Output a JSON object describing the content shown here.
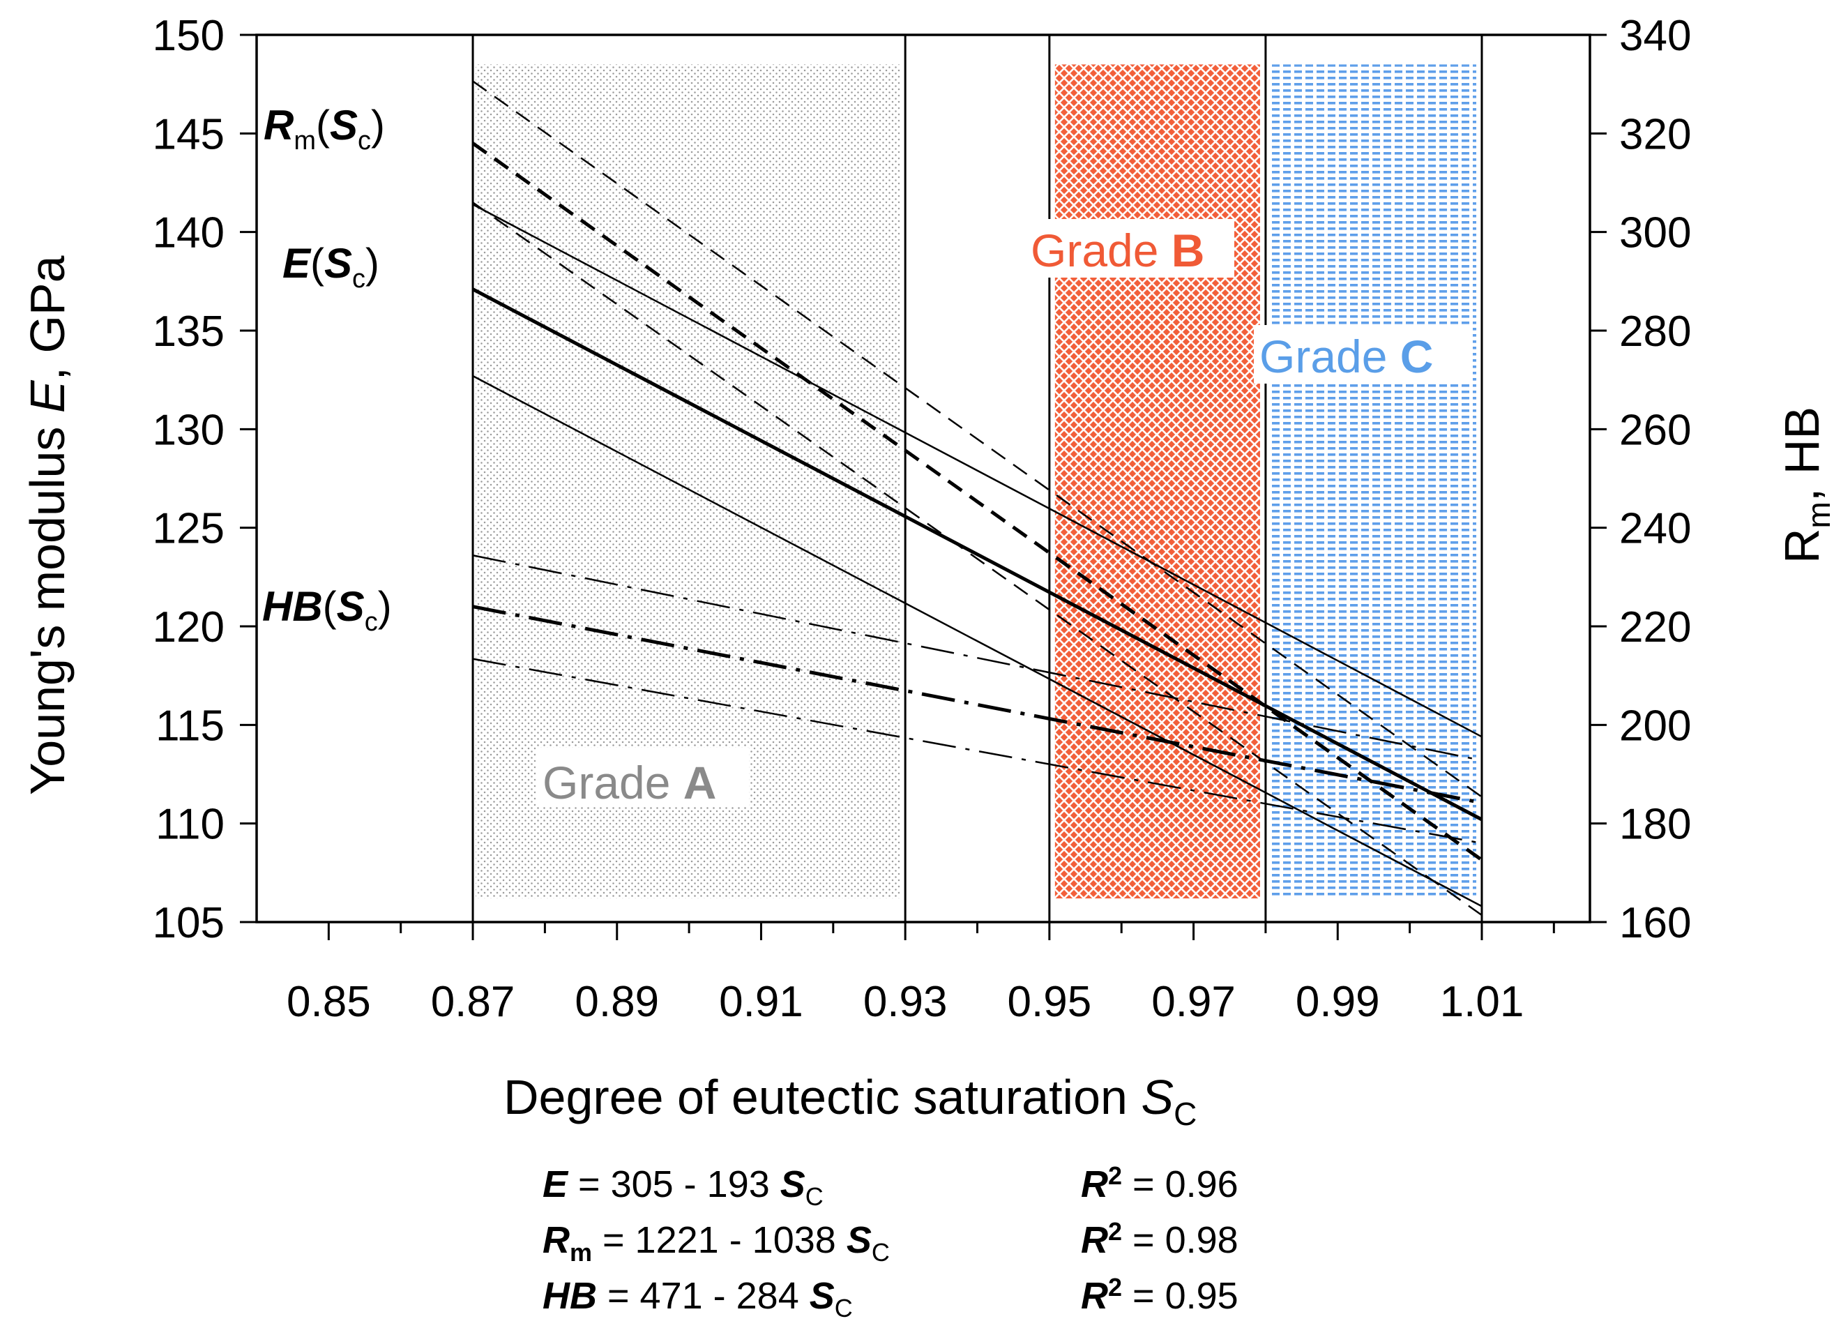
{
  "chart_data": {
    "type": "line",
    "title": "",
    "xlabel": "Degree of eutectic saturation",
    "xlabel_symbol": "S",
    "xlabel_sub": "C",
    "ylabel": "Young's modulus",
    "ylabel_symbol": "E",
    "ylabel_unit": ", GPa",
    "y2label": "R",
    "y2label_sub": "m",
    "y2label_rest": ", HB",
    "xlim": [
      0.84,
      1.025
    ],
    "ylim": [
      105,
      150
    ],
    "y2lim": [
      160,
      340
    ],
    "xticks": [
      0.85,
      0.87,
      0.89,
      0.91,
      0.93,
      0.95,
      0.97,
      0.99,
      1.01
    ],
    "xtick_labels": [
      "0.85",
      "0.87",
      "0.89",
      "0.91",
      "0.93",
      "0.95",
      "0.97",
      "0.99",
      "1.01"
    ],
    "yticks": [
      105,
      110,
      115,
      120,
      125,
      130,
      135,
      140,
      145,
      150
    ],
    "ytick_labels": [
      "105",
      "110",
      "115",
      "120",
      "125",
      "130",
      "135",
      "140",
      "145",
      "150"
    ],
    "y2ticks": [
      160,
      180,
      200,
      220,
      240,
      260,
      280,
      300,
      320,
      340
    ],
    "y2tick_labels": [
      "160",
      "180",
      "200",
      "220",
      "240",
      "260",
      "280",
      "300",
      "320",
      "340"
    ],
    "vertical_lines": [
      0.87,
      0.93,
      0.95,
      0.98,
      1.01
    ],
    "regions": [
      {
        "name": "Grade A",
        "grade": "Grade ",
        "letter": "A",
        "x0": 0.87,
        "x1": 0.93,
        "color": "#8a8a8a"
      },
      {
        "name": "Grade B",
        "grade": "Grade ",
        "letter": "B",
        "x0": 0.95,
        "x1": 0.98,
        "color": "#f05a36"
      },
      {
        "name": "Grade C",
        "grade": "Grade ",
        "letter": "C",
        "x0": 0.98,
        "x1": 1.01,
        "color": "#5a9ee8"
      }
    ],
    "series": [
      {
        "name": "E(Sc)",
        "axis": "left",
        "style": "solid",
        "role": "fit",
        "x": [
          0.87,
          1.01
        ],
        "values": [
          137.1,
          110.2
        ]
      },
      {
        "name": "E(Sc) upper bound",
        "axis": "left",
        "style": "solid",
        "role": "bound",
        "x": [
          0.87,
          1.01
        ],
        "values": [
          141.4,
          114.4
        ]
      },
      {
        "name": "E(Sc) lower bound",
        "axis": "left",
        "style": "solid",
        "role": "bound",
        "x": [
          0.87,
          1.01
        ],
        "values": [
          132.7,
          105.8
        ]
      },
      {
        "name": "Rm(Sc)",
        "axis": "right",
        "style": "dashed",
        "role": "fit",
        "x": [
          0.87,
          1.01
        ],
        "values": [
          318,
          172.6
        ]
      },
      {
        "name": "Rm(Sc) upper bound",
        "axis": "right",
        "style": "dashed",
        "role": "bound",
        "x": [
          0.87,
          1.01
        ],
        "values": [
          330.6,
          185.4
        ]
      },
      {
        "name": "Rm(Sc) lower bound",
        "axis": "right",
        "style": "dashed",
        "role": "bound",
        "x": [
          0.87,
          1.01
        ],
        "values": [
          306,
          161.4
        ]
      },
      {
        "name": "HB(Sc)",
        "axis": "right",
        "style": "dashdot",
        "role": "fit",
        "x": [
          0.87,
          1.01
        ],
        "values": [
          224,
          184.2
        ]
      },
      {
        "name": "HB(Sc) upper bound",
        "axis": "right",
        "style": "dashdot",
        "role": "bound",
        "x": [
          0.87,
          1.01
        ],
        "values": [
          234.4,
          192.8
        ]
      },
      {
        "name": "HB(Sc) lower bound",
        "axis": "right",
        "style": "dashdot",
        "role": "bound",
        "x": [
          0.87,
          1.01
        ],
        "values": [
          213.4,
          176
        ]
      }
    ],
    "curve_labels": {
      "rm": {
        "main": "R",
        "sub": "m",
        "open": "(",
        "s": "S",
        "s_sub": "c",
        "close": ")"
      },
      "e": {
        "main": "E",
        "open": "(",
        "s": "S",
        "s_sub": "c",
        "close": ")"
      },
      "hb": {
        "main": "HB",
        "open": "(",
        "s": "S",
        "s_sub": "c",
        "close": ")"
      }
    },
    "equations": [
      {
        "lhs": "E",
        "lhs_sub": "",
        "rhs": " = 305 - 193 ",
        "s": "S",
        "s_sub": "C",
        "r": "R",
        "r_sup": "2",
        "r_val": " = 0.96"
      },
      {
        "lhs": "R",
        "lhs_sub": "m",
        "rhs": " = 1221 - 1038 ",
        "s": "S",
        "s_sub": "C",
        "r": "R",
        "r_sup": "2",
        "r_val": " = 0.98"
      },
      {
        "lhs": "HB",
        "lhs_sub": "",
        "rhs": " = 471 - 284 ",
        "s": "S",
        "s_sub": "C",
        "r": "R",
        "r_sup": "2",
        "r_val": " = 0.95"
      }
    ],
    "grid": false,
    "legend": "none"
  }
}
